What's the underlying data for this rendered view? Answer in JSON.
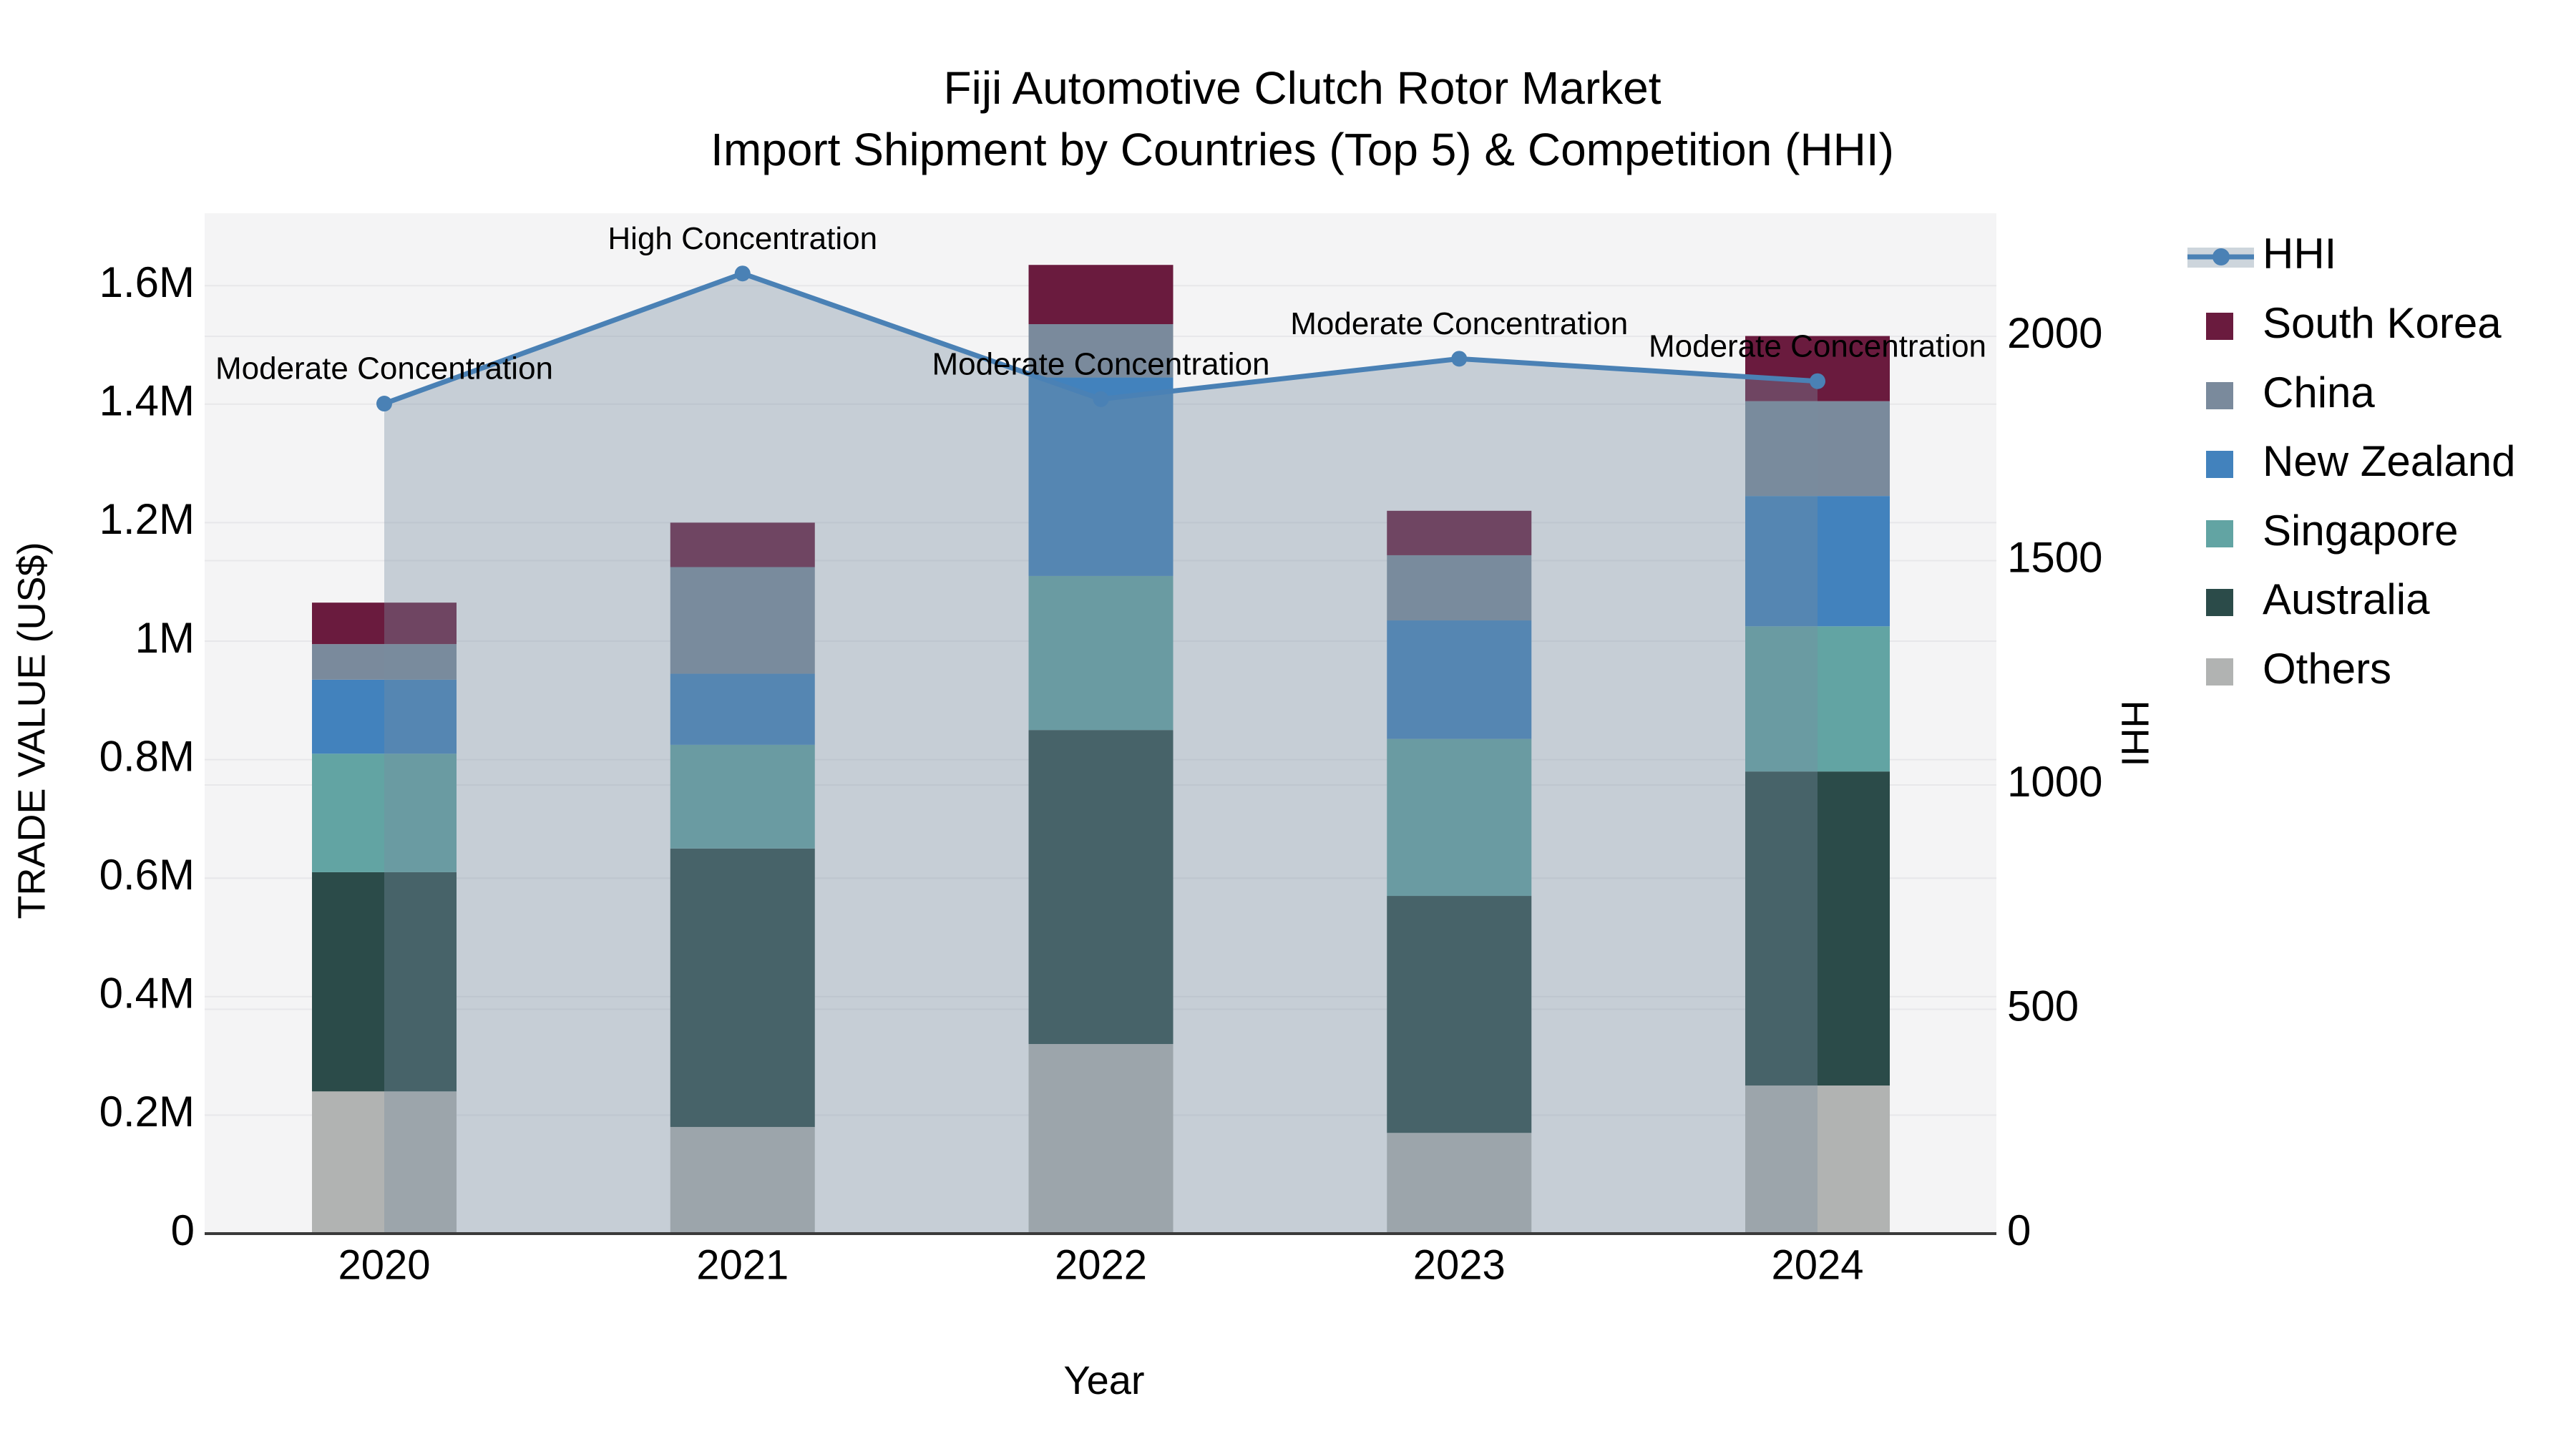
{
  "chart_data": {
    "type": "bar",
    "title": "Fiji Automotive Clutch Rotor Market",
    "subtitle": "Import Shipment by Countries (Top 5) & Competition (HHI)",
    "xlabel": "Year",
    "ylabel_left": "TRADE VALUE (US$)",
    "ylabel_right": "HHI",
    "categories": [
      "2020",
      "2021",
      "2022",
      "2023",
      "2024"
    ],
    "stack_order": [
      "Others",
      "Australia",
      "Singapore",
      "New Zealand",
      "China",
      "South Korea"
    ],
    "series": [
      {
        "name": "Others",
        "values": [
          0.24,
          0.18,
          0.32,
          0.17,
          0.25
        ]
      },
      {
        "name": "Australia",
        "values": [
          0.37,
          0.47,
          0.53,
          0.4,
          0.53
        ]
      },
      {
        "name": "Singapore",
        "values": [
          0.2,
          0.175,
          0.26,
          0.265,
          0.245
        ]
      },
      {
        "name": "New Zealand",
        "values": [
          0.125,
          0.12,
          0.335,
          0.2,
          0.22
        ]
      },
      {
        "name": "China",
        "values": [
          0.06,
          0.18,
          0.09,
          0.11,
          0.16
        ]
      },
      {
        "name": "South Korea",
        "values": [
          0.07,
          0.075,
          0.1,
          0.075,
          0.11
        ]
      }
    ],
    "bar_totals_musd": [
      1.07,
      1.2,
      1.64,
      1.22,
      1.52
    ],
    "line_series": {
      "name": "HHI",
      "values": [
        1850,
        2140,
        1860,
        1950,
        1900
      ]
    },
    "annotations": [
      "Moderate Concentration",
      "High Concentration",
      "Moderate Concentration",
      "Moderate Concentration",
      "Moderate Concentration"
    ],
    "y_left_axis": {
      "tick_labels": [
        "0",
        "0.2M",
        "0.4M",
        "0.6M",
        "0.8M",
        "1M",
        "1.2M",
        "1.4M",
        "1.6M"
      ],
      "tick_values": [
        0,
        0.2,
        0.4,
        0.6,
        0.8,
        1.0,
        1.2,
        1.4,
        1.6
      ],
      "range": [
        0,
        1.722
      ]
    },
    "y_right_axis": {
      "tick_labels": [
        "0",
        "500",
        "1000",
        "1500",
        "2000"
      ],
      "tick_values": [
        0,
        500,
        1000,
        1500,
        2000
      ],
      "range": [
        0,
        2274
      ]
    },
    "grid": true,
    "legend_position": "right",
    "colors": {
      "South Korea": "#6a1b3e",
      "China": "#7a8a9c",
      "New Zealand": "#4282bd",
      "Singapore": "#62a4a3",
      "Australia": "#2b4b49",
      "Others": "#b1b3b2",
      "hhi_line": "#4a81b5",
      "hhi_area_fill": "rgba(120,140,160,0.37)",
      "plot_background": "#f4f4f5",
      "gridline": "#e7e7ea",
      "axis_spine": "#3a3a3a",
      "text": "#000000"
    }
  },
  "legend": {
    "items": [
      {
        "label": "HHI",
        "marker": "line"
      },
      {
        "label": "South Korea",
        "marker": "swatch"
      },
      {
        "label": "China",
        "marker": "swatch"
      },
      {
        "label": "New Zealand",
        "marker": "swatch"
      },
      {
        "label": "Singapore",
        "marker": "swatch"
      },
      {
        "label": "Australia",
        "marker": "swatch"
      },
      {
        "label": "Others",
        "marker": "swatch"
      }
    ]
  }
}
